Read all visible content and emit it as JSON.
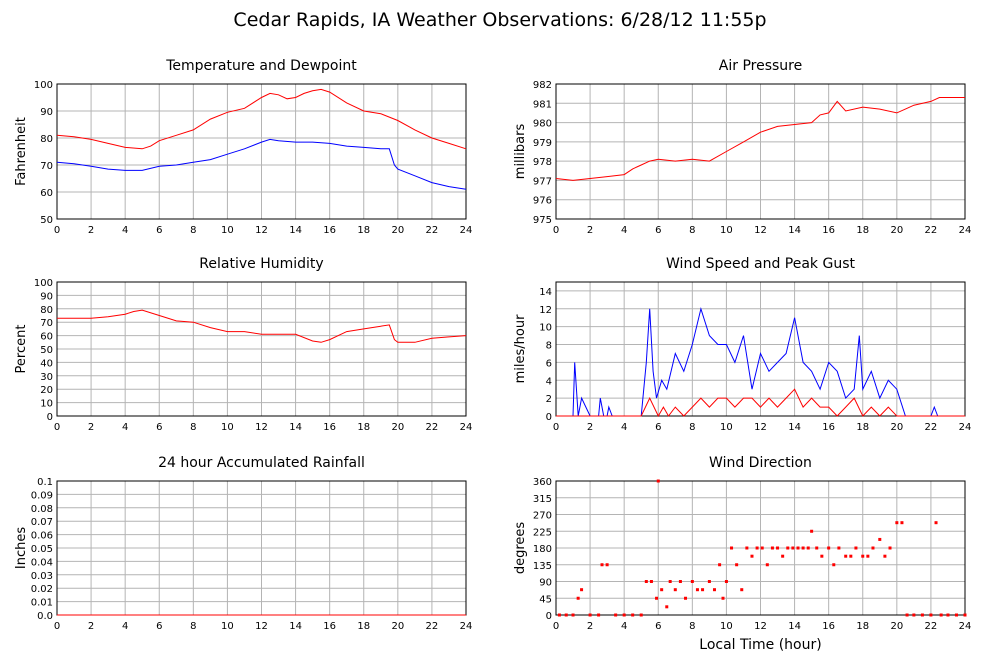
{
  "title": "Cedar Rapids, IA Weather Observations: 6/28/12 11:55p",
  "colors": {
    "red": "#ff0000",
    "blue": "#0000ff",
    "grid": "#b4b4b4"
  },
  "chart_data": [
    {
      "id": "temp",
      "type": "line",
      "title": "Temperature and Dewpoint",
      "xlabel": "",
      "ylabel": "Fahrenheit",
      "xlim": [
        0,
        24
      ],
      "ylim": [
        50,
        100
      ],
      "xticks": [
        0,
        2,
        4,
        6,
        8,
        10,
        12,
        14,
        16,
        18,
        20,
        22,
        24
      ],
      "yticks": [
        50,
        60,
        70,
        80,
        90,
        100
      ],
      "series": [
        {
          "color": "#ff0000",
          "x": [
            0,
            1,
            2,
            3,
            4,
            5,
            5.5,
            6,
            7,
            8,
            9,
            10,
            11,
            12,
            12.5,
            13,
            13.5,
            14,
            14.5,
            15,
            15.5,
            16,
            17,
            18,
            19,
            20,
            21,
            22,
            23,
            24
          ],
          "y": [
            81,
            80.5,
            79.5,
            78,
            76.5,
            76,
            77,
            79,
            81,
            83,
            87,
            89.5,
            91,
            95,
            96.5,
            96,
            94.5,
            95,
            96.5,
            97.5,
            98,
            97,
            93,
            90,
            89,
            86.5,
            83,
            80,
            78,
            76
          ]
        },
        {
          "color": "#0000ff",
          "x": [
            0,
            1,
            2,
            3,
            4,
            5,
            6,
            7,
            8,
            9,
            10,
            11,
            12,
            12.5,
            13,
            14,
            15,
            16,
            17,
            18,
            19,
            19.5,
            19.8,
            20,
            21,
            22,
            23,
            24
          ],
          "y": [
            71,
            70.5,
            69.5,
            68.5,
            68,
            68,
            69.5,
            70,
            71,
            72,
            74,
            76,
            78.5,
            79.5,
            79,
            78.5,
            78.5,
            78,
            77,
            76.5,
            76,
            76,
            70,
            68.5,
            66,
            63.5,
            62,
            61
          ]
        }
      ]
    },
    {
      "id": "pressure",
      "type": "line",
      "title": "Air Pressure",
      "xlabel": "",
      "ylabel": "millibars",
      "xlim": [
        0,
        24
      ],
      "ylim": [
        975,
        982
      ],
      "xticks": [
        0,
        2,
        4,
        6,
        8,
        10,
        12,
        14,
        16,
        18,
        20,
        22,
        24
      ],
      "yticks": [
        975,
        976,
        977,
        978,
        979,
        980,
        981,
        982
      ],
      "series": [
        {
          "color": "#ff0000",
          "x": [
            0,
            1,
            2,
            3,
            4,
            4.5,
            5,
            5.5,
            6,
            7,
            8,
            9,
            10,
            11,
            12,
            13,
            14,
            15,
            15.5,
            16,
            16.5,
            17,
            18,
            19,
            20,
            20.5,
            21,
            22,
            22.5,
            23,
            24
          ],
          "y": [
            977.1,
            977,
            977.1,
            977.2,
            977.3,
            977.6,
            977.8,
            978,
            978.1,
            978,
            978.1,
            978,
            978.5,
            979,
            979.5,
            979.8,
            979.9,
            980,
            980.4,
            980.5,
            981.1,
            980.6,
            980.8,
            980.7,
            980.5,
            980.7,
            980.9,
            981.1,
            981.3,
            981.3,
            981.3
          ]
        }
      ]
    },
    {
      "id": "humidity",
      "type": "line",
      "title": "Relative Humidity",
      "xlabel": "",
      "ylabel": "Percent",
      "xlim": [
        0,
        24
      ],
      "ylim": [
        0,
        100
      ],
      "xticks": [
        0,
        2,
        4,
        6,
        8,
        10,
        12,
        14,
        16,
        18,
        20,
        22,
        24
      ],
      "yticks": [
        0,
        10,
        20,
        30,
        40,
        50,
        60,
        70,
        80,
        90,
        100
      ],
      "series": [
        {
          "color": "#ff0000",
          "x": [
            0,
            1,
            2,
            3,
            4,
            4.5,
            5,
            6,
            7,
            8,
            9,
            10,
            11,
            12,
            13,
            14,
            15,
            15.5,
            16,
            17,
            18,
            19,
            19.5,
            19.8,
            20,
            21,
            22,
            23,
            24
          ],
          "y": [
            73,
            73,
            73,
            74,
            76,
            78,
            79,
            75,
            71,
            70,
            66,
            63,
            63,
            61,
            61,
            61,
            56,
            55,
            57,
            63,
            65,
            67,
            68,
            57,
            55,
            55,
            58,
            59,
            60
          ]
        }
      ]
    },
    {
      "id": "wind",
      "type": "line",
      "title": "Wind Speed and Peak Gust",
      "xlabel": "",
      "ylabel": "miles/hour",
      "xlim": [
        0,
        24
      ],
      "ylim": [
        0,
        15
      ],
      "xticks": [
        0,
        2,
        4,
        6,
        8,
        10,
        12,
        14,
        16,
        18,
        20,
        22,
        24
      ],
      "yticks": [
        0,
        2,
        4,
        6,
        8,
        10,
        12,
        14
      ],
      "series": [
        {
          "color": "#0000ff",
          "x": [
            0,
            1,
            1.1,
            1.3,
            1.5,
            2,
            2.5,
            2.6,
            2.8,
            3,
            3.1,
            3.3,
            5,
            5.3,
            5.5,
            5.7,
            5.9,
            6.2,
            6.5,
            7,
            7.5,
            8,
            8.5,
            9,
            9.5,
            10,
            10.5,
            11,
            11.5,
            12,
            12.5,
            13,
            13.5,
            14,
            14.5,
            15,
            15.5,
            16,
            16.5,
            17,
            17.5,
            17.8,
            18,
            18.5,
            19,
            19.5,
            20,
            20.5,
            22,
            22.2,
            22.4,
            24
          ],
          "y": [
            0,
            0,
            6,
            0,
            2,
            0,
            0,
            2,
            0,
            0,
            1,
            0,
            0,
            6,
            12,
            5,
            2,
            4,
            3,
            7,
            5,
            8,
            12,
            9,
            8,
            8,
            6,
            9,
            3,
            7,
            5,
            6,
            7,
            11,
            6,
            5,
            3,
            6,
            5,
            2,
            3,
            9,
            3,
            5,
            2,
            4,
            3,
            0,
            0,
            1,
            0,
            0
          ]
        },
        {
          "color": "#ff0000",
          "x": [
            0,
            5,
            5.5,
            6,
            6.3,
            6.6,
            7,
            7.5,
            8,
            8.5,
            9,
            9.5,
            10,
            10.5,
            11,
            11.5,
            12,
            12.5,
            13,
            13.5,
            14,
            14.5,
            15,
            15.5,
            16,
            16.5,
            17,
            17.5,
            18,
            18.5,
            19,
            19.5,
            20,
            24
          ],
          "y": [
            0,
            0,
            2,
            0,
            1,
            0,
            1,
            0,
            1,
            2,
            1,
            2,
            2,
            1,
            2,
            2,
            1,
            2,
            1,
            2,
            3,
            1,
            2,
            1,
            1,
            0,
            1,
            2,
            0,
            1,
            0,
            1,
            0,
            0
          ]
        }
      ]
    },
    {
      "id": "rain",
      "type": "line",
      "title": "24 hour Accumulated Rainfall",
      "xlabel": "",
      "ylabel": "Inches",
      "xlim": [
        0,
        24
      ],
      "ylim": [
        0,
        0.1
      ],
      "xticks": [
        0,
        2,
        4,
        6,
        8,
        10,
        12,
        14,
        16,
        18,
        20,
        22,
        24
      ],
      "yticks": [
        "0.0",
        "0.01",
        "0.02",
        "0.03",
        "0.04",
        "0.05",
        "0.06",
        "0.07",
        "0.08",
        "0.09",
        "0.1"
      ],
      "series": [
        {
          "color": "#ff0000",
          "x": [
            0,
            24
          ],
          "y": [
            0,
            0
          ]
        }
      ]
    },
    {
      "id": "direction",
      "type": "scatter",
      "title": "Wind Direction",
      "xlabel": "Local Time (hour)",
      "ylabel": "degrees",
      "xlim": [
        0,
        24
      ],
      "ylim": [
        0,
        360
      ],
      "xticks": [
        0,
        2,
        4,
        6,
        8,
        10,
        12,
        14,
        16,
        18,
        20,
        22,
        24
      ],
      "yticks": [
        0,
        45,
        90,
        135,
        180,
        225,
        270,
        315,
        360
      ],
      "series": [
        {
          "color": "#ff0000",
          "x": [
            0.2,
            0.6,
            1.0,
            1.3,
            1.5,
            2.0,
            2.5,
            2.7,
            3.0,
            3.5,
            4.0,
            4.5,
            5.0,
            5.3,
            5.6,
            5.9,
            6.0,
            6.2,
            6.5,
            6.7,
            7.0,
            7.3,
            7.6,
            8.0,
            8.3,
            8.6,
            9.0,
            9.3,
            9.6,
            9.8,
            10.0,
            10.3,
            10.6,
            10.9,
            11.2,
            11.5,
            11.8,
            12.1,
            12.4,
            12.7,
            13.0,
            13.3,
            13.6,
            13.9,
            14.2,
            14.5,
            14.8,
            15.0,
            15.3,
            15.6,
            16.0,
            16.3,
            16.6,
            17.0,
            17.3,
            17.6,
            18.0,
            18.3,
            18.6,
            19.0,
            19.3,
            19.6,
            20.0,
            20.3,
            20.6,
            21.0,
            21.5,
            22.0,
            22.3,
            22.6,
            23.0,
            23.5,
            24.0
          ],
          "y": [
            0,
            0,
            0,
            45,
            68,
            0,
            0,
            135,
            135,
            0,
            0,
            0,
            0,
            90,
            90,
            45,
            360,
            68,
            22,
            90,
            68,
            90,
            45,
            90,
            68,
            68,
            90,
            68,
            135,
            45,
            90,
            180,
            135,
            68,
            180,
            158,
            180,
            180,
            135,
            180,
            180,
            158,
            180,
            180,
            180,
            180,
            180,
            225,
            180,
            158,
            180,
            135,
            180,
            158,
            158,
            180,
            158,
            158,
            180,
            203,
            158,
            180,
            248,
            248,
            0,
            0,
            0,
            0,
            248,
            0,
            0,
            0,
            0
          ]
        }
      ]
    }
  ]
}
